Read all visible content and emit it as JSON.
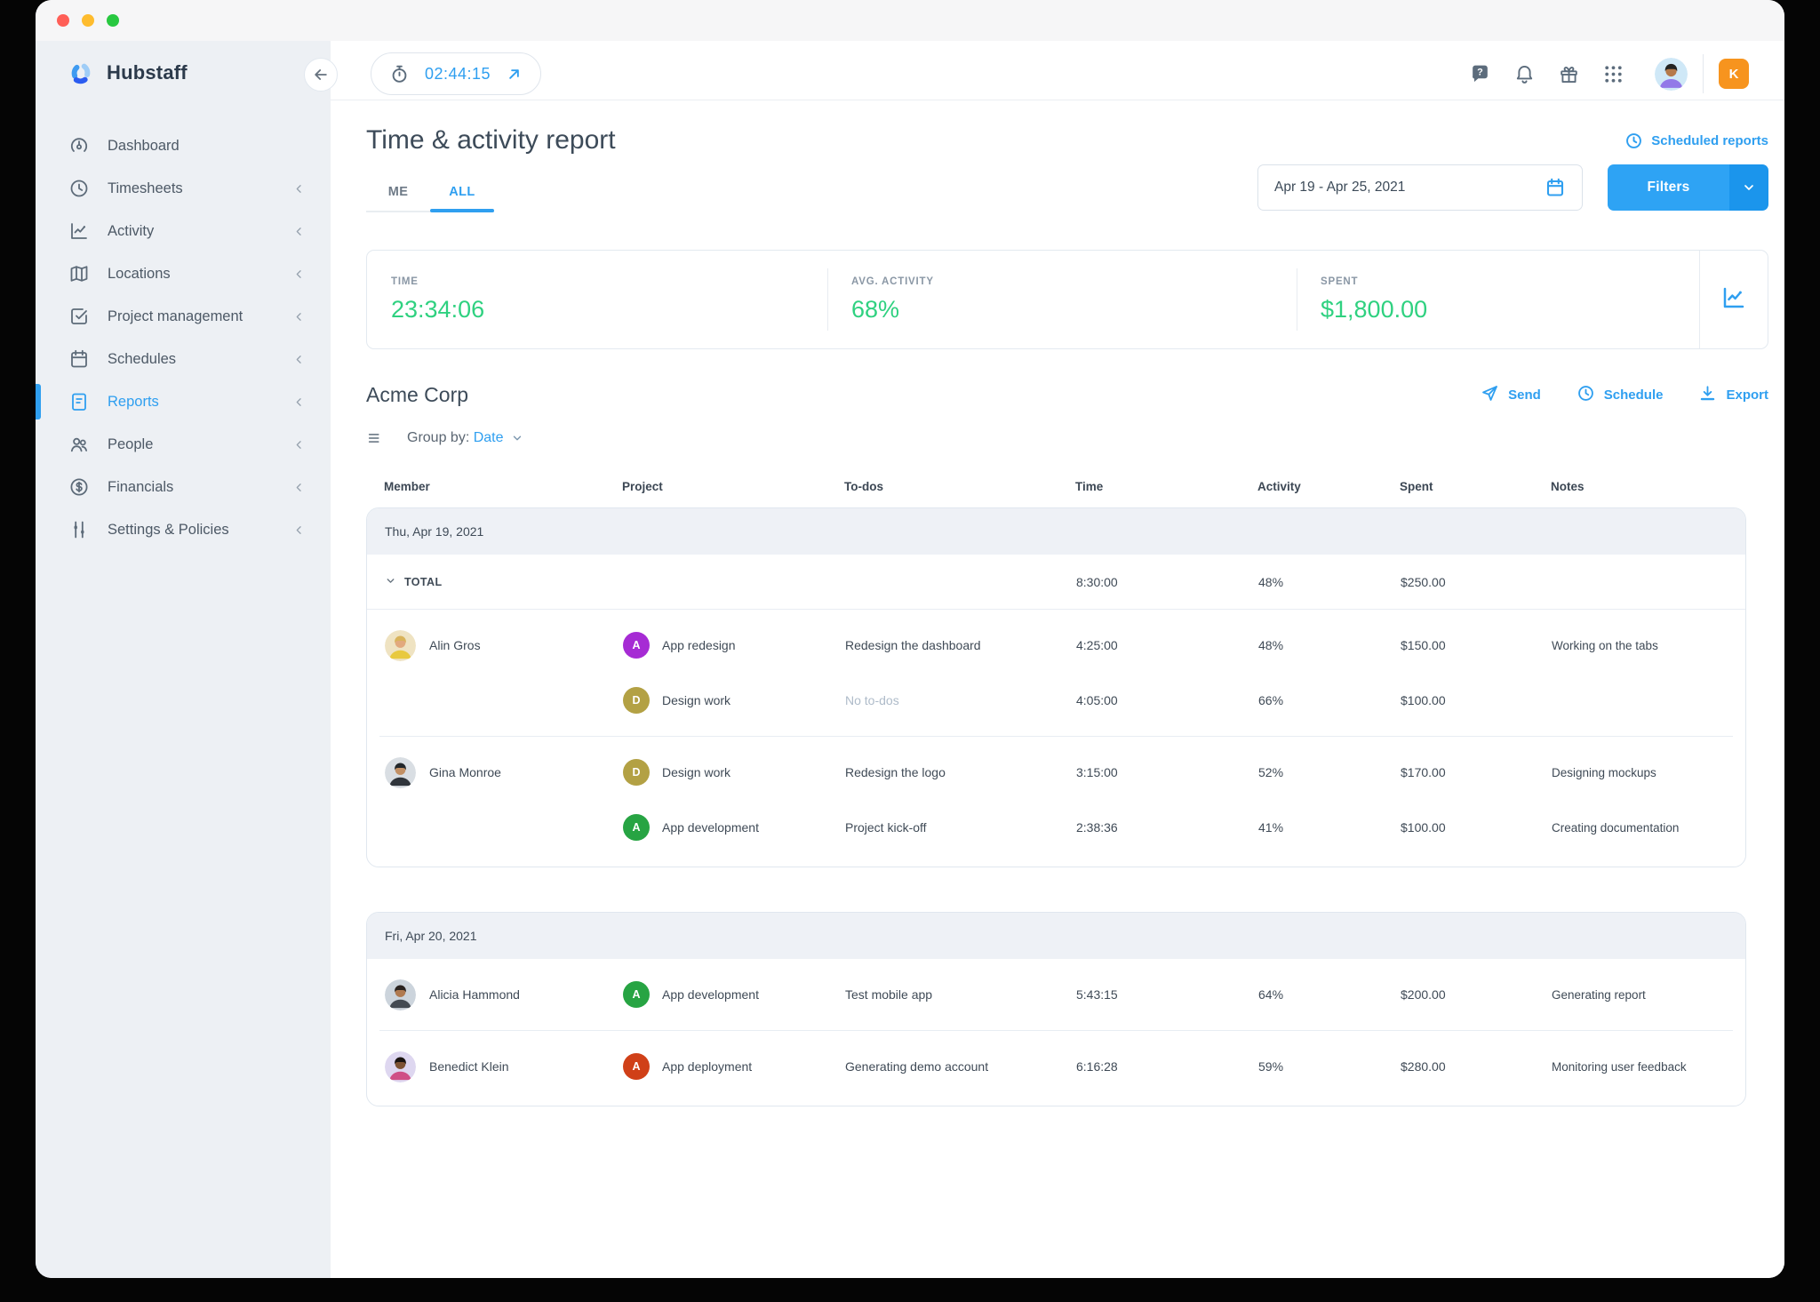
{
  "window": {
    "traffic_lights": [
      "#ff5f57",
      "#febc2e",
      "#28c840"
    ]
  },
  "sidebar": {
    "logo_text": "Hubstaff",
    "items": [
      {
        "label": "Dashboard",
        "icon": "speedometer-icon",
        "active": false,
        "chevron": false
      },
      {
        "label": "Timesheets",
        "icon": "clock-icon",
        "active": false,
        "chevron": true
      },
      {
        "label": "Activity",
        "icon": "line-chart-icon",
        "active": false,
        "chevron": true
      },
      {
        "label": "Locations",
        "icon": "map-icon",
        "active": false,
        "chevron": true
      },
      {
        "label": "Project management",
        "icon": "check-square-icon",
        "active": false,
        "chevron": true
      },
      {
        "label": "Schedules",
        "icon": "calendar-icon",
        "active": false,
        "chevron": true
      },
      {
        "label": "Reports",
        "icon": "document-icon",
        "active": true,
        "chevron": true
      },
      {
        "label": "People",
        "icon": "people-icon",
        "active": false,
        "chevron": true
      },
      {
        "label": "Financials",
        "icon": "dollar-circle-icon",
        "active": false,
        "chevron": true
      },
      {
        "label": "Settings & Policies",
        "icon": "sliders-icon",
        "active": false,
        "chevron": true
      }
    ]
  },
  "topbar": {
    "timer_value": "02:44:15",
    "icons": [
      {
        "name": "help-icon"
      },
      {
        "name": "bell-icon"
      },
      {
        "name": "gift-icon"
      },
      {
        "name": "apps-grid-icon"
      }
    ],
    "avatar_colors": {
      "bg": "#cfe8f7",
      "skin": "#b5794a",
      "shirt": "#9279e8",
      "hair": "#222222"
    },
    "workspace_badge": "K",
    "badge_color": "#F7941E"
  },
  "page": {
    "title": "Time & activity report",
    "scheduled_reports_label": "Scheduled reports",
    "tabs": [
      {
        "label": "ME",
        "active": false
      },
      {
        "label": "ALL",
        "active": true
      }
    ],
    "date_range": "Apr 19 - Apr 25, 2021",
    "filters_label": "Filters"
  },
  "stats": {
    "value_color": "#2fd180",
    "items": [
      {
        "label": "TIME",
        "value": "23:34:06"
      },
      {
        "label": "AVG. ACTIVITY",
        "value": "68%"
      },
      {
        "label": "SPENT",
        "value": "$1,800.00"
      }
    ]
  },
  "org": {
    "name": "Acme Corp",
    "actions": [
      {
        "label": "Send",
        "icon": "send-icon"
      },
      {
        "label": "Schedule",
        "icon": "clock-icon"
      },
      {
        "label": "Export",
        "icon": "download-icon"
      }
    ]
  },
  "group_by": {
    "label": "Group by:",
    "value": "Date"
  },
  "table": {
    "headers": [
      "Member",
      "Project",
      "To-dos",
      "Time",
      "Activity",
      "Spent",
      "Notes"
    ],
    "groups": [
      {
        "date": "Thu, Apr 19, 2021",
        "total": {
          "label": "TOTAL",
          "time": "8:30:00",
          "activity": "48%",
          "spent": "$250.00"
        },
        "blocks": [
          {
            "member": "Alin Gros",
            "avatar": {
              "bg": "#efe3c2",
              "skin": "#e2a97e",
              "shirt": "#e8c93f",
              "hair": "#d9b35a"
            },
            "entries": [
              {
                "project_initial": "A",
                "project_color": "#A62BD4",
                "project": "App redesign",
                "todo": "Redesign the dashboard",
                "todo_muted": false,
                "time": "4:25:00",
                "activity": "48%",
                "spent": "$150.00",
                "note": "Working on the tabs"
              },
              {
                "project_initial": "D",
                "project_color": "#B3A144",
                "project": "Design work",
                "todo": "No to-dos",
                "todo_muted": true,
                "time": "4:05:00",
                "activity": "66%",
                "spent": "$100.00",
                "note": ""
              }
            ]
          },
          {
            "member": "Gina Monroe",
            "avatar": {
              "bg": "#d9dee3",
              "skin": "#c29065",
              "shirt": "#30353b",
              "hair": "#23272b"
            },
            "entries": [
              {
                "project_initial": "D",
                "project_color": "#B3A144",
                "project": "Design work",
                "todo": "Redesign the logo",
                "todo_muted": false,
                "time": "3:15:00",
                "activity": "52%",
                "spent": "$170.00",
                "note": "Designing mockups"
              },
              {
                "project_initial": "A",
                "project_color": "#27A443",
                "project": "App development",
                "todo": "Project kick-off",
                "todo_muted": false,
                "time": "2:38:36",
                "activity": "41%",
                "spent": "$100.00",
                "note": "Creating documentation"
              }
            ]
          }
        ]
      },
      {
        "date": "Fri, Apr 20, 2021",
        "total": null,
        "blocks": [
          {
            "member": "Alicia Hammond",
            "avatar": {
              "bg": "#ccd4dc",
              "skin": "#b07a50",
              "shirt": "#434a52",
              "hair": "#2a2320"
            },
            "entries": [
              {
                "project_initial": "A",
                "project_color": "#27A443",
                "project": "App development",
                "todo": "Test mobile app",
                "todo_muted": false,
                "time": "5:43:15",
                "activity": "64%",
                "spent": "$200.00",
                "note": "Generating report"
              }
            ]
          },
          {
            "member": "Benedict Klein",
            "avatar": {
              "bg": "#ded7f0",
              "skin": "#7d5233",
              "shirt": "#cf4f86",
              "hair": "#191310"
            },
            "entries": [
              {
                "project_initial": "A",
                "project_color": "#D04018",
                "project": "App deployment",
                "todo": "Generating demo account",
                "todo_muted": false,
                "time": "6:16:28",
                "activity": "59%",
                "spent": "$280.00",
                "note": "Monitoring user feedback"
              }
            ]
          }
        ]
      }
    ]
  }
}
